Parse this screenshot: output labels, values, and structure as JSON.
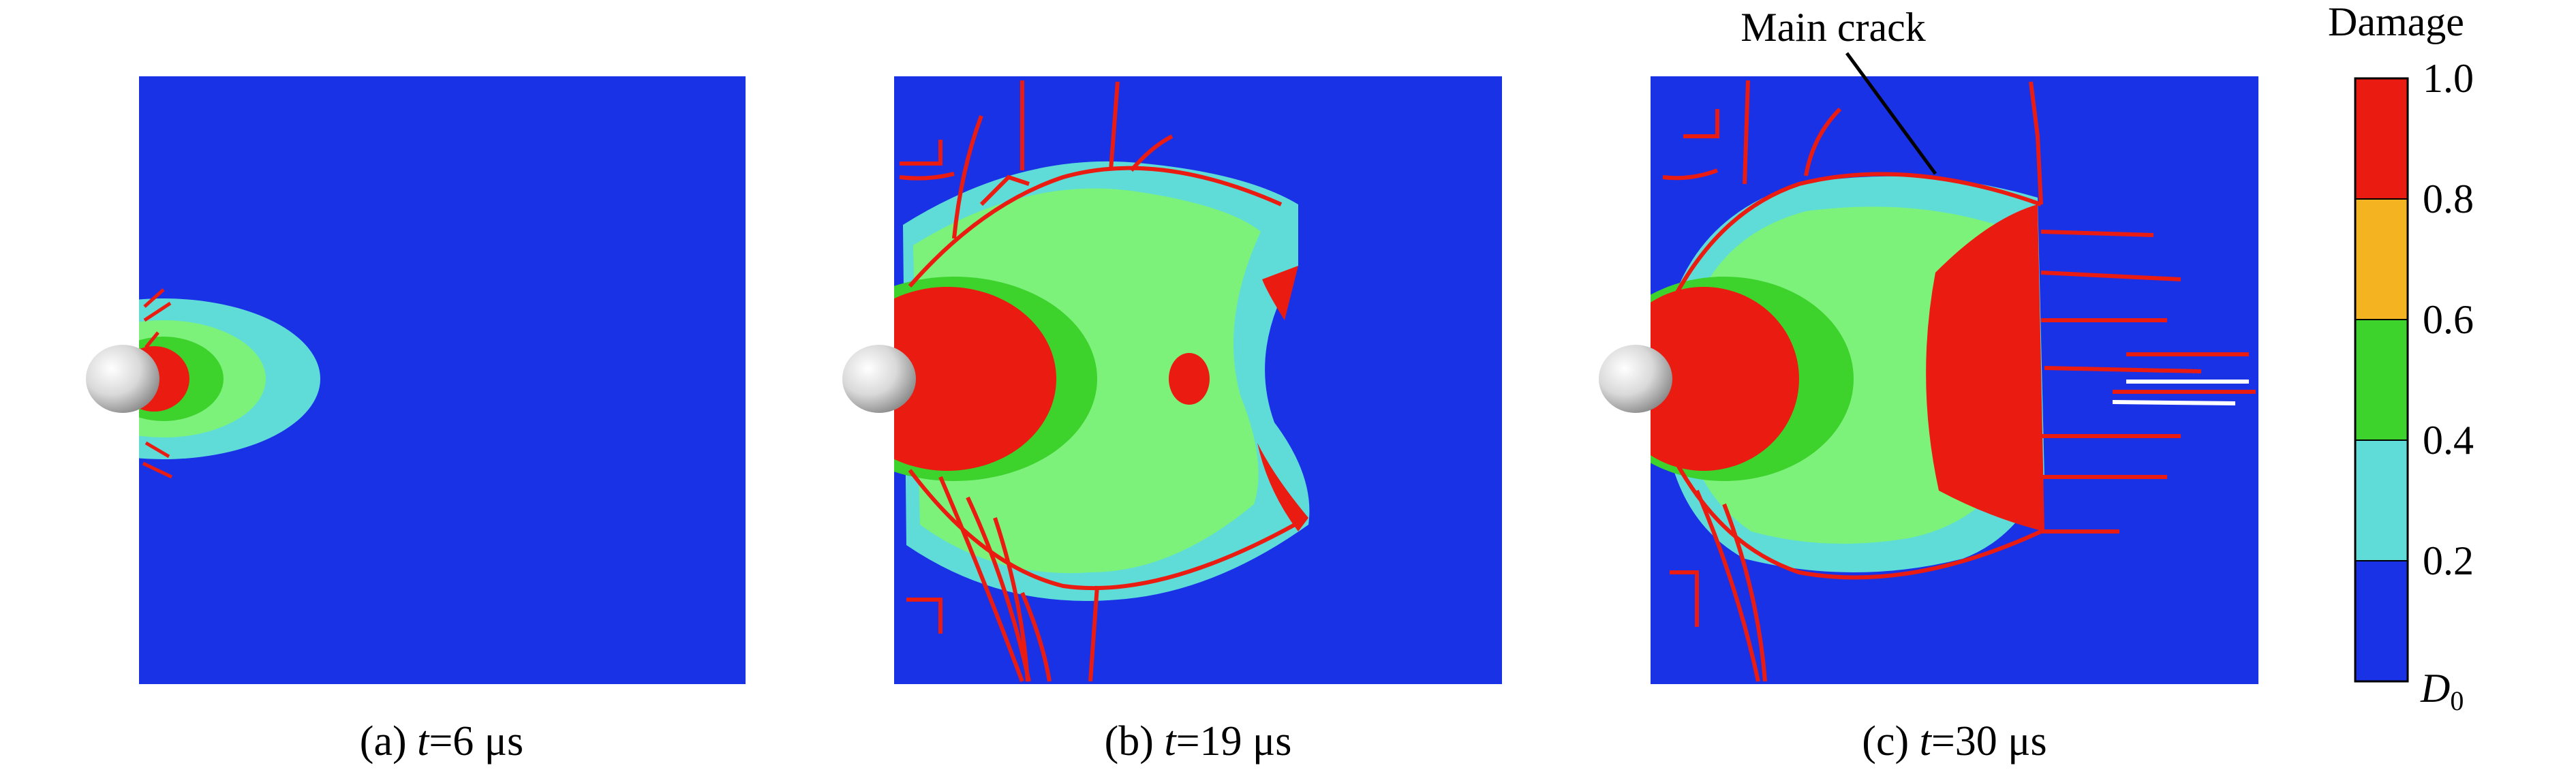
{
  "panels": [
    {
      "id": "a",
      "caption_prefix": "(a) ",
      "caption_var": "t",
      "caption_value": "=6 μs",
      "time_us": 6
    },
    {
      "id": "b",
      "caption_prefix": "(b) ",
      "caption_var": "t",
      "caption_value": "=19 μs",
      "time_us": 19
    },
    {
      "id": "c",
      "caption_prefix": "(c) ",
      "caption_var": "t",
      "caption_value": "=30 μs",
      "time_us": 30
    }
  ],
  "annotation": {
    "text": "Main crack"
  },
  "colorbar": {
    "title": "Damage",
    "min_label_base": "D",
    "min_label_sub": "0",
    "ticks": [
      "0.2",
      "0.4",
      "0.6",
      "0.8",
      "1.0"
    ],
    "segments": [
      {
        "from": 0.0,
        "to": 0.2,
        "color": "#1a32e6"
      },
      {
        "from": 0.2,
        "to": 0.4,
        "color": "#5fdcd8"
      },
      {
        "from": 0.4,
        "to": 0.6,
        "color": "#3dd22c"
      },
      {
        "from": 0.6,
        "to": 0.8,
        "color": "#f4b321"
      },
      {
        "from": 0.8,
        "to": 1.0,
        "color": "#ea1c12"
      }
    ]
  },
  "colors": {
    "background_blue": "#1a32e6",
    "cyan": "#5fdcd8",
    "light_green": "#7df27a",
    "green": "#3dd22c",
    "red": "#ea1c12",
    "crack": "#ea1c12",
    "projectile": "#d8d8d8"
  }
}
